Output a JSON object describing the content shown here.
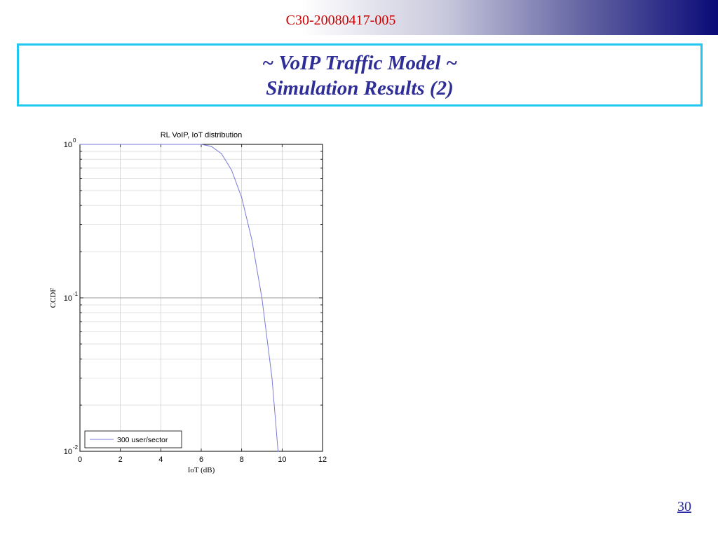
{
  "header": {
    "doc_id": "C30-20080417-005",
    "title_line1": "~ VoIP Traffic Model ~",
    "title_line2": "Simulation Results (2)"
  },
  "footer": {
    "page_number": "30"
  },
  "colors": {
    "doc_id": "#cc0000",
    "title": "#2e2e96",
    "title_border": "#1ec8f0",
    "series": "#7a7ad8",
    "banner_end": "#0a0a78"
  },
  "chart_data": {
    "type": "line",
    "title": "RL VoIP, IoT distribution",
    "xlabel": "IoT (dB)",
    "ylabel": "CCDF",
    "xlim": [
      0,
      12
    ],
    "ylim": [
      0.01,
      1
    ],
    "yscale": "log",
    "grid": true,
    "legend_position": "bottom-left",
    "xticks": [
      "0",
      "2",
      "4",
      "6",
      "8",
      "10",
      "12"
    ],
    "yticks": [
      {
        "base": "10",
        "exp": "-2"
      },
      {
        "base": "10",
        "exp": "-1"
      },
      {
        "base": "10",
        "exp": "0"
      }
    ],
    "series": [
      {
        "name": "300 user/sector",
        "x": [
          0,
          6,
          6.5,
          7.0,
          7.5,
          8.0,
          8.5,
          9.0,
          9.5,
          9.8
        ],
        "y": [
          1.0,
          1.0,
          0.97,
          0.87,
          0.68,
          0.45,
          0.24,
          0.1,
          0.03,
          0.01
        ]
      }
    ]
  }
}
